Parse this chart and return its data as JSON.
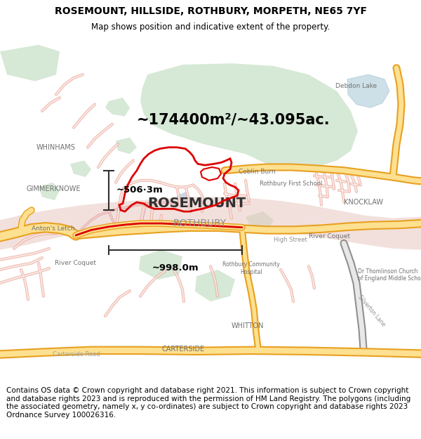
{
  "title_line1": "ROSEMOUNT, HILLSIDE, ROTHBURY, MORPETH, NE65 7YF",
  "title_line2": "Map shows position and indicative extent of the property.",
  "area_text": "~174400m²/~43.095ac.",
  "scale_v_text": "~506·3m",
  "scale_h_text": "~998.0m",
  "label_rosemount": "ROSEMOUNT",
  "label_rothbury": "ROTHBURY",
  "label_whinhams": "WHINHAMS",
  "label_gimmerknowe": "GIMMERKNOWE",
  "label_antonsletch": "Anton's Letch",
  "label_knocklaw": "KNOCKLAW",
  "label_rivercoquet1": "River Coquet",
  "label_rivercoquet2": "River Coquet",
  "label_debdonlake": "Debdon Lake",
  "label_coblinburn": "Coblin Burn",
  "label_rothburyfirst": "Rothbury First School",
  "label_rothburycommunity": "Rothbury Community\nHospital",
  "label_drthomlinson": "Dr Thomlinson Church\nof England Middle School",
  "label_whitton": "WHITTON",
  "label_carterside": "CARTERSIDE",
  "label_cartersideroad": "Carterside Road",
  "label_highstreet": "High Street",
  "label_silvertonlane": "Silverton Lane",
  "footer_text": "Contains OS data © Crown copyright and database right 2021. This information is subject to Crown copyright and database rights 2023 and is reproduced with the permission of HM Land Registry. The polygons (including the associated geometry, namely x, y co-ordinates) are subject to Crown copyright and database rights 2023 Ordnance Survey 100026316.",
  "map_bg": "#ffffff",
  "green_color": "#d6e8d6",
  "water_color": "#cde0e8",
  "river_fill": "#e8c8c0",
  "road_orange_outer": "#e8a020",
  "road_orange_inner": "#fde090",
  "road_pink_outline": "#e8a090",
  "road_gray_outer": "#909090",
  "road_gray_inner": "#e0e0e0",
  "property_red": "#dd0000",
  "property_orange": "#dd8800",
  "scale_color": "#303030",
  "label_dark": "#404040",
  "label_gray": "#808080",
  "title_fontsize": 10,
  "subtitle_fontsize": 8.5,
  "footer_fontsize": 7.5
}
